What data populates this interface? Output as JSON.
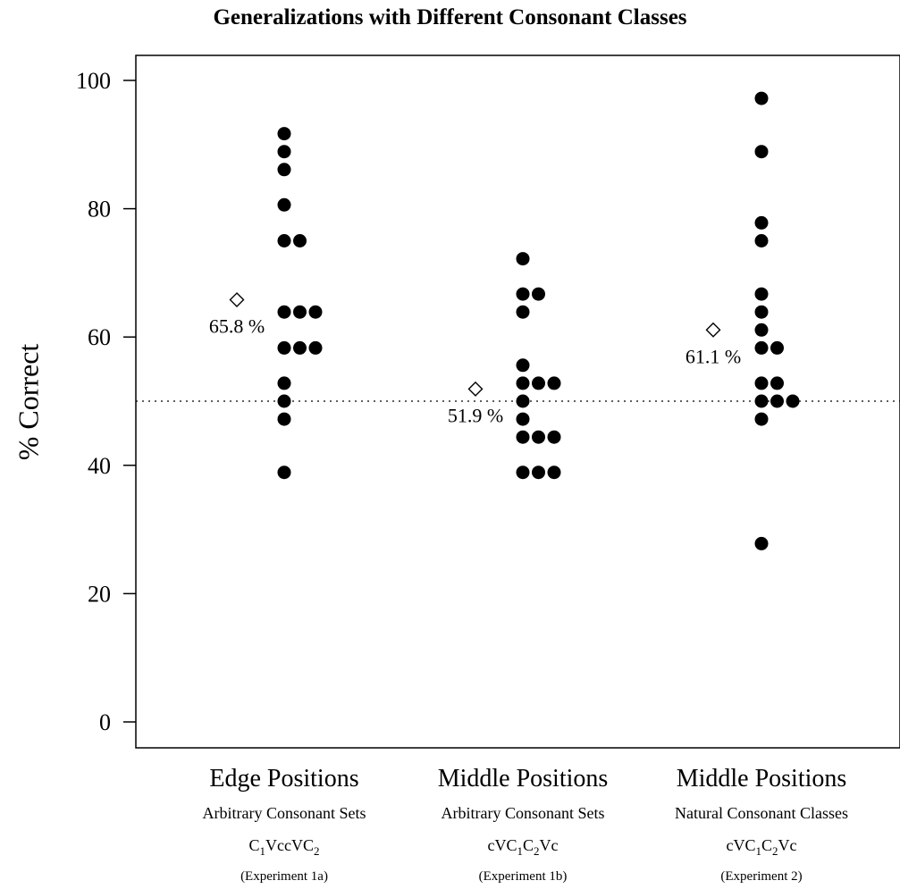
{
  "chart_data": {
    "type": "scatter",
    "title": "Generalizations with Different Consonant Classes",
    "ylabel": "% Correct",
    "ylim": [
      0,
      100
    ],
    "yticks": [
      0,
      20,
      40,
      60,
      80,
      100
    ],
    "reference_line": 50,
    "grid": false,
    "categories": [
      {
        "name": "Edge Positions",
        "sub": "Arbitrary Consonant Sets",
        "formula": [
          {
            "t": "C"
          },
          {
            "t": "1",
            "sub": true
          },
          {
            "t": "VccVC"
          },
          {
            "t": "2",
            "sub": true
          }
        ],
        "experiment": "(Experiment 1a)",
        "mean": 65.8,
        "mean_label": "65.8 %",
        "points": [
          91.7,
          88.9,
          86.1,
          80.6,
          75,
          75,
          63.9,
          63.9,
          63.9,
          58.3,
          58.3,
          58.3,
          52.8,
          50,
          47.2,
          38.9
        ]
      },
      {
        "name": "Middle Positions",
        "sub": "Arbitrary Consonant Sets",
        "formula": [
          {
            "t": "cVC"
          },
          {
            "t": "1",
            "sub": true
          },
          {
            "t": "C"
          },
          {
            "t": "2",
            "sub": true
          },
          {
            "t": "Vc"
          }
        ],
        "experiment": "(Experiment 1b)",
        "mean": 51.9,
        "mean_label": "51.9 %",
        "points": [
          72.2,
          66.7,
          66.7,
          63.9,
          55.6,
          52.8,
          52.8,
          52.8,
          50,
          47.2,
          44.4,
          44.4,
          44.4,
          38.9,
          38.9,
          38.9
        ]
      },
      {
        "name": "Middle Positions",
        "sub": "Natural Consonant Classes",
        "formula": [
          {
            "t": "cVC"
          },
          {
            "t": "1",
            "sub": true
          },
          {
            "t": "C"
          },
          {
            "t": "2",
            "sub": true
          },
          {
            "t": "Vc"
          }
        ],
        "experiment": "(Experiment 2)",
        "mean": 61.1,
        "mean_label": "61.1 %",
        "points": [
          97.2,
          88.9,
          77.8,
          75,
          66.7,
          63.9,
          61.1,
          58.3,
          58.3,
          52.8,
          52.8,
          50,
          50,
          50,
          47.2,
          27.8
        ]
      }
    ]
  }
}
